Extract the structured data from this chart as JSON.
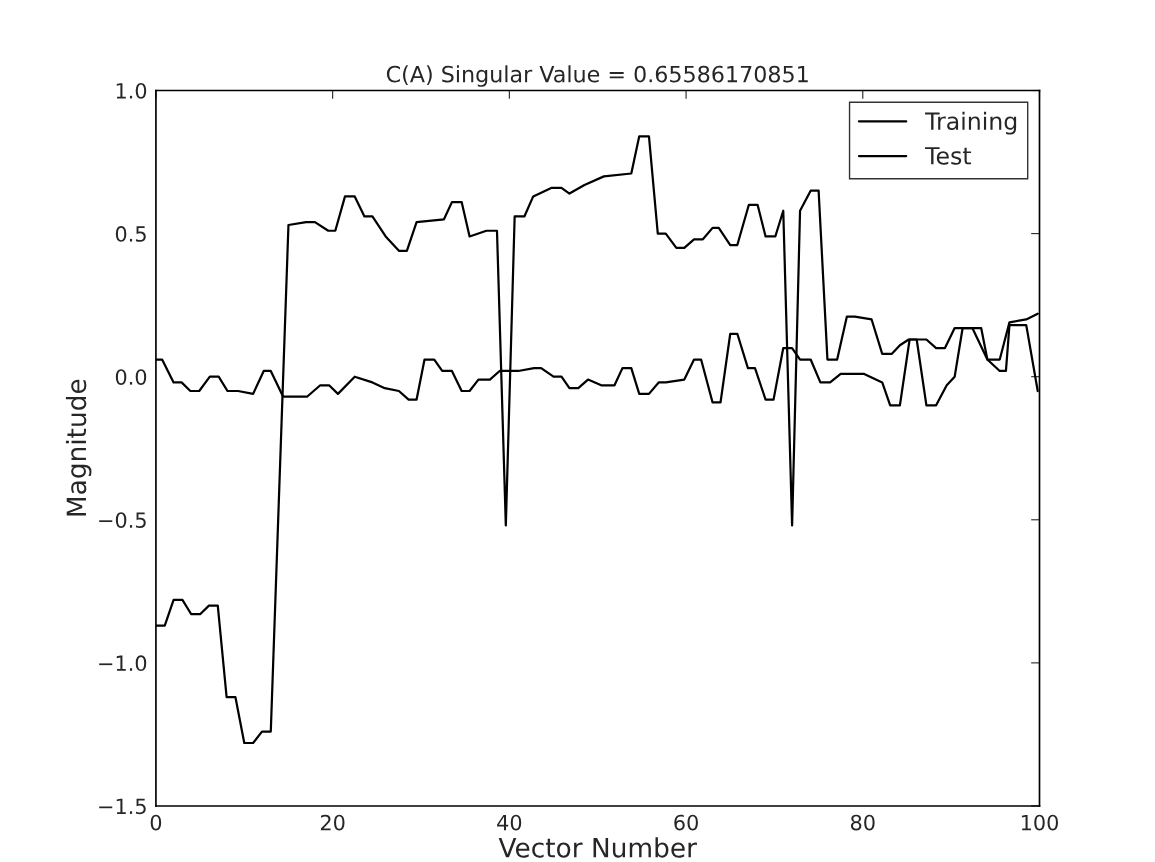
{
  "chart_data": {
    "type": "line",
    "title": "C(A) Singular Value = 0.65586170851",
    "xlabel": "Vector Number",
    "ylabel": "Magnitude",
    "series": [
      {
        "name": "Training",
        "color": "#000000",
        "x": [
          0,
          1,
          2,
          3,
          4,
          5,
          6,
          7,
          8,
          9,
          10,
          11,
          12,
          13,
          15,
          17,
          18,
          19.5,
          20.3,
          21.4,
          22.5,
          23.6,
          24.5,
          26,
          27.5,
          28.4,
          29.5,
          32.6,
          33.5,
          34.6,
          35.5,
          37.4,
          38.6,
          39.6,
          40.6,
          41.7,
          42.7,
          44.8,
          45.9,
          46.8,
          48.5,
          50.7,
          53.8,
          54.7,
          55.8,
          56.8,
          57.7,
          58.9,
          59.8,
          60.9,
          61.9,
          63,
          63.7,
          65,
          65.8,
          67.1,
          68.1,
          69,
          70.1,
          71,
          72,
          72.9,
          74.1,
          75,
          76,
          77.1,
          78.2,
          79.1,
          81,
          82.2,
          83.3,
          84.2,
          85.2,
          87.2,
          88.3,
          89.3,
          90.4,
          93.4,
          94.1,
          95.5,
          96.6,
          98.5,
          99.8
        ],
        "values": [
          -0.87,
          -0.87,
          -0.78,
          -0.78,
          -0.83,
          -0.83,
          -0.8,
          -0.8,
          -1.12,
          -1.12,
          -1.28,
          -1.28,
          -1.24,
          -1.24,
          0.53,
          0.54,
          0.54,
          0.51,
          0.51,
          0.63,
          0.63,
          0.56,
          0.56,
          0.49,
          0.44,
          0.44,
          0.54,
          0.55,
          0.61,
          0.61,
          0.49,
          0.51,
          0.51,
          -0.52,
          0.56,
          0.56,
          0.63,
          0.66,
          0.66,
          0.64,
          0.67,
          0.7,
          0.71,
          0.84,
          0.84,
          0.5,
          0.5,
          0.45,
          0.45,
          0.48,
          0.48,
          0.52,
          0.52,
          0.46,
          0.46,
          0.6,
          0.6,
          0.49,
          0.49,
          0.58,
          -0.52,
          0.58,
          0.65,
          0.65,
          0.06,
          0.06,
          0.21,
          0.21,
          0.2,
          0.08,
          0.08,
          0.11,
          0.13,
          0.13,
          0.1,
          0.1,
          0.17,
          0.17,
          0.06,
          0.06,
          0.19,
          0.2,
          0.22
        ]
      },
      {
        "name": "Test",
        "color": "#000000",
        "x": [
          0,
          0.7,
          2,
          2.9,
          3.9,
          4.9,
          6.1,
          7.1,
          8.1,
          9.3,
          11,
          12.2,
          13,
          14.4,
          17.1,
          18.6,
          19.6,
          20.6,
          22.5,
          24.5,
          25.9,
          27.5,
          28.6,
          29.5,
          30.4,
          31.5,
          32.4,
          33.5,
          34.6,
          35.5,
          36.5,
          37.8,
          38.9,
          41,
          42.8,
          43.6,
          45,
          45.9,
          46.8,
          47.8,
          48.9,
          50.4,
          51.9,
          52.8,
          53.8,
          54.7,
          55.8,
          56.9,
          57.7,
          59.8,
          60.9,
          61.7,
          63,
          63.9,
          65,
          65.8,
          67,
          67.8,
          69,
          69.9,
          71,
          72,
          72.9,
          74.1,
          75.2,
          76.3,
          77.5,
          80.1,
          82.2,
          83.1,
          84.2,
          85.3,
          86.1,
          87.2,
          88.3,
          89.5,
          90.4,
          91.3,
          92.4,
          94.1,
          95.5,
          96.2,
          96.6,
          97.5,
          98.5,
          99.8
        ],
        "values": [
          0.06,
          0.06,
          -0.02,
          -0.02,
          -0.05,
          -0.05,
          0.0,
          0.0,
          -0.05,
          -0.05,
          -0.06,
          0.02,
          0.02,
          -0.07,
          -0.07,
          -0.03,
          -0.03,
          -0.06,
          0.0,
          -0.02,
          -0.04,
          -0.05,
          -0.08,
          -0.08,
          0.06,
          0.06,
          0.02,
          0.02,
          -0.05,
          -0.05,
          -0.01,
          -0.01,
          0.02,
          0.02,
          0.03,
          0.03,
          0.0,
          0.0,
          -0.04,
          -0.04,
          -0.01,
          -0.03,
          -0.03,
          0.03,
          0.03,
          -0.06,
          -0.06,
          -0.02,
          -0.02,
          -0.01,
          0.06,
          0.06,
          -0.09,
          -0.09,
          0.15,
          0.15,
          0.03,
          0.03,
          -0.08,
          -0.08,
          0.1,
          0.1,
          0.06,
          0.06,
          -0.02,
          -0.02,
          0.01,
          0.01,
          -0.02,
          -0.1,
          -0.1,
          0.13,
          0.13,
          -0.1,
          -0.1,
          -0.03,
          0.0,
          0.17,
          0.17,
          0.06,
          0.02,
          0.02,
          0.18,
          0.18,
          0.18,
          -0.05
        ]
      }
    ],
    "xlim": [
      0,
      100
    ],
    "xticks": [
      0,
      20,
      40,
      60,
      80,
      100
    ],
    "ylim": [
      -1.5,
      1.0
    ],
    "yticks": [
      {
        "value": -1.5,
        "label": "−1.5"
      },
      {
        "value": -1.0,
        "label": "−1.0"
      },
      {
        "value": -0.5,
        "label": "−0.5"
      },
      {
        "value": 0.0,
        "label": "0.0"
      },
      {
        "value": 0.5,
        "label": "0.5"
      },
      {
        "value": 1.0,
        "label": "1.0"
      }
    ],
    "grid": false,
    "legend": "top right",
    "marker": "none",
    "line_style": "solid"
  }
}
